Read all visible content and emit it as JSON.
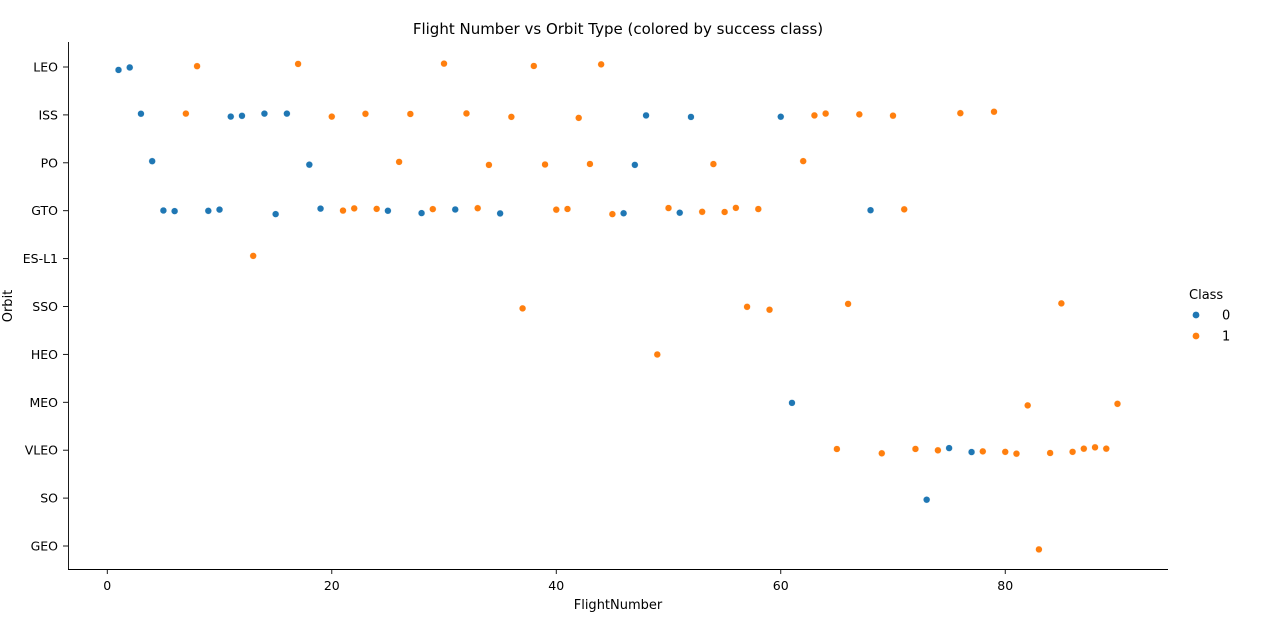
{
  "chart_data": {
    "type": "scatter",
    "title": "Flight Number vs Orbit Type (colored by success class)",
    "xlabel": "FlightNumber",
    "ylabel": "Orbit",
    "xlim": [
      -3.5,
      94.5
    ],
    "xticks": [
      0,
      20,
      40,
      60,
      80
    ],
    "categories": [
      "LEO",
      "ISS",
      "PO",
      "GTO",
      "ES-L1",
      "SSO",
      "HEO",
      "MEO",
      "VLEO",
      "SO",
      "GEO"
    ],
    "grid": false,
    "legend": {
      "title": "Class",
      "placement": "right",
      "entries": [
        {
          "label": "0",
          "color": "#1f77b4"
        },
        {
          "label": "1",
          "color": "#ff7f0e"
        }
      ]
    },
    "series": [
      {
        "name": "0",
        "color": "#1f77b4",
        "points": [
          [
            1,
            "LEO"
          ],
          [
            2,
            "LEO"
          ],
          [
            3,
            "ISS"
          ],
          [
            11,
            "ISS"
          ],
          [
            12,
            "ISS"
          ],
          [
            14,
            "ISS"
          ],
          [
            16,
            "ISS"
          ],
          [
            48,
            "ISS"
          ],
          [
            52,
            "ISS"
          ],
          [
            60,
            "ISS"
          ],
          [
            4,
            "PO"
          ],
          [
            18,
            "PO"
          ],
          [
            47,
            "PO"
          ],
          [
            5,
            "GTO"
          ],
          [
            6,
            "GTO"
          ],
          [
            9,
            "GTO"
          ],
          [
            10,
            "GTO"
          ],
          [
            15,
            "GTO"
          ],
          [
            19,
            "GTO"
          ],
          [
            25,
            "GTO"
          ],
          [
            28,
            "GTO"
          ],
          [
            31,
            "GTO"
          ],
          [
            35,
            "GTO"
          ],
          [
            46,
            "GTO"
          ],
          [
            51,
            "GTO"
          ],
          [
            68,
            "GTO"
          ],
          [
            61,
            "MEO"
          ],
          [
            75,
            "VLEO"
          ],
          [
            77,
            "VLEO"
          ],
          [
            73,
            "SO"
          ]
        ]
      },
      {
        "name": "1",
        "color": "#ff7f0e",
        "points": [
          [
            8,
            "LEO"
          ],
          [
            17,
            "LEO"
          ],
          [
            30,
            "LEO"
          ],
          [
            38,
            "LEO"
          ],
          [
            44,
            "LEO"
          ],
          [
            7,
            "ISS"
          ],
          [
            20,
            "ISS"
          ],
          [
            23,
            "ISS"
          ],
          [
            27,
            "ISS"
          ],
          [
            32,
            "ISS"
          ],
          [
            36,
            "ISS"
          ],
          [
            42,
            "ISS"
          ],
          [
            63,
            "ISS"
          ],
          [
            64,
            "ISS"
          ],
          [
            67,
            "ISS"
          ],
          [
            70,
            "ISS"
          ],
          [
            76,
            "ISS"
          ],
          [
            79,
            "ISS"
          ],
          [
            26,
            "PO"
          ],
          [
            34,
            "PO"
          ],
          [
            39,
            "PO"
          ],
          [
            43,
            "PO"
          ],
          [
            54,
            "PO"
          ],
          [
            62,
            "PO"
          ],
          [
            21,
            "GTO"
          ],
          [
            22,
            "GTO"
          ],
          [
            24,
            "GTO"
          ],
          [
            29,
            "GTO"
          ],
          [
            33,
            "GTO"
          ],
          [
            40,
            "GTO"
          ],
          [
            41,
            "GTO"
          ],
          [
            45,
            "GTO"
          ],
          [
            50,
            "GTO"
          ],
          [
            53,
            "GTO"
          ],
          [
            55,
            "GTO"
          ],
          [
            56,
            "GTO"
          ],
          [
            58,
            "GTO"
          ],
          [
            71,
            "GTO"
          ],
          [
            13,
            "ES-L1"
          ],
          [
            37,
            "SSO"
          ],
          [
            57,
            "SSO"
          ],
          [
            59,
            "SSO"
          ],
          [
            66,
            "SSO"
          ],
          [
            85,
            "SSO"
          ],
          [
            49,
            "HEO"
          ],
          [
            82,
            "MEO"
          ],
          [
            90,
            "MEO"
          ],
          [
            65,
            "VLEO"
          ],
          [
            69,
            "VLEO"
          ],
          [
            72,
            "VLEO"
          ],
          [
            74,
            "VLEO"
          ],
          [
            78,
            "VLEO"
          ],
          [
            80,
            "VLEO"
          ],
          [
            81,
            "VLEO"
          ],
          [
            84,
            "VLEO"
          ],
          [
            86,
            "VLEO"
          ],
          [
            87,
            "VLEO"
          ],
          [
            88,
            "VLEO"
          ],
          [
            89,
            "VLEO"
          ],
          [
            83,
            "GEO"
          ]
        ]
      }
    ]
  }
}
